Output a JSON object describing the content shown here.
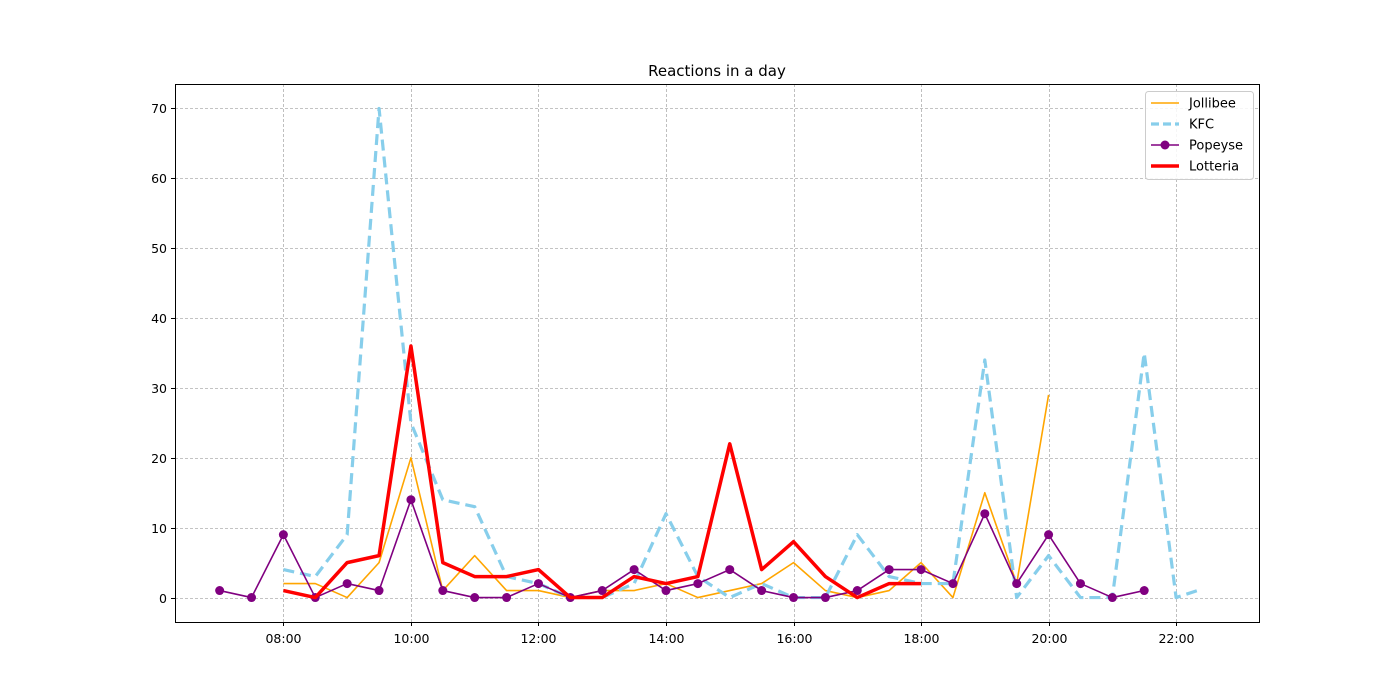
{
  "chart_data": {
    "type": "line",
    "title": "Reactions in a day",
    "xlabel": "",
    "ylabel": "",
    "x_ticks": [
      "08:00",
      "10:00",
      "12:00",
      "14:00",
      "16:00",
      "18:00",
      "20:00",
      "22:00"
    ],
    "y_ticks": [
      "0",
      "10",
      "20",
      "30",
      "40",
      "50",
      "60",
      "70"
    ],
    "xlim": [
      "06:18",
      "23:18"
    ],
    "ylim": [
      -3.5,
      73.5
    ],
    "grid": true,
    "legend_position": "top-right",
    "series": [
      {
        "name": "Jollibee",
        "color": "#FFA500",
        "style": "solid",
        "marker": "none",
        "x": [
          "08:00",
          "08:30",
          "09:00",
          "09:30",
          "10:00",
          "10:30",
          "11:00",
          "11:30",
          "12:00",
          "12:30",
          "13:00",
          "13:30",
          "14:00",
          "14:30",
          "15:00",
          "15:30",
          "16:00",
          "16:30",
          "17:00",
          "17:30",
          "18:00",
          "18:30",
          "19:00",
          "19:30",
          "20:00"
        ],
        "y": [
          2,
          2,
          0,
          5,
          20,
          1,
          6,
          1,
          1,
          0,
          1,
          1,
          2,
          0,
          1,
          2,
          5,
          1,
          0,
          1,
          5,
          0,
          15,
          2,
          29
        ]
      },
      {
        "name": "KFC",
        "color": "#87CEEB",
        "style": "dashed",
        "marker": "none",
        "x": [
          "08:00",
          "08:30",
          "09:00",
          "09:30",
          "10:00",
          "10:30",
          "11:00",
          "11:30",
          "12:00",
          "12:30",
          "13:00",
          "13:30",
          "14:00",
          "14:30",
          "15:00",
          "15:30",
          "16:00",
          "16:30",
          "17:00",
          "17:30",
          "18:00",
          "18:30",
          "19:00",
          "19:30",
          "20:00",
          "20:30",
          "21:00",
          "21:30",
          "22:00",
          "22:20"
        ],
        "y": [
          4,
          3,
          9,
          70,
          25,
          14,
          13,
          3,
          2,
          0,
          0,
          2,
          12,
          3,
          0,
          2,
          0,
          0,
          9,
          3,
          2,
          2,
          34,
          0,
          6,
          0,
          0,
          35,
          0,
          1
        ]
      },
      {
        "name": "Popeyse",
        "color": "#800080",
        "style": "solid",
        "marker": "circle",
        "x": [
          "07:00",
          "07:30",
          "08:00",
          "08:30",
          "09:00",
          "09:30",
          "10:00",
          "10:30",
          "11:00",
          "11:30",
          "12:00",
          "12:30",
          "13:00",
          "13:30",
          "14:00",
          "14:30",
          "15:00",
          "15:30",
          "16:00",
          "16:30",
          "17:00",
          "17:30",
          "18:00",
          "18:30",
          "19:00",
          "19:30",
          "20:00",
          "20:30",
          "21:00",
          "21:30"
        ],
        "y": [
          1,
          0,
          9,
          0,
          2,
          1,
          14,
          1,
          0,
          0,
          2,
          0,
          1,
          4,
          1,
          2,
          4,
          1,
          0,
          0,
          1,
          4,
          4,
          2,
          12,
          2,
          9,
          2,
          0,
          1
        ]
      },
      {
        "name": "Lotteria",
        "color": "#FF0000",
        "style": "solid-thick",
        "marker": "none",
        "x": [
          "08:00",
          "08:30",
          "09:00",
          "09:30",
          "10:00",
          "10:30",
          "11:00",
          "11:30",
          "12:00",
          "12:30",
          "13:00",
          "13:30",
          "14:00",
          "14:30",
          "15:00",
          "15:30",
          "16:00",
          "16:30",
          "17:00",
          "17:30",
          "18:00"
        ],
        "y": [
          1,
          0,
          5,
          6,
          36,
          5,
          3,
          3,
          4,
          0,
          0,
          3,
          2,
          3,
          22,
          4,
          8,
          3,
          0,
          2,
          2
        ]
      }
    ]
  }
}
